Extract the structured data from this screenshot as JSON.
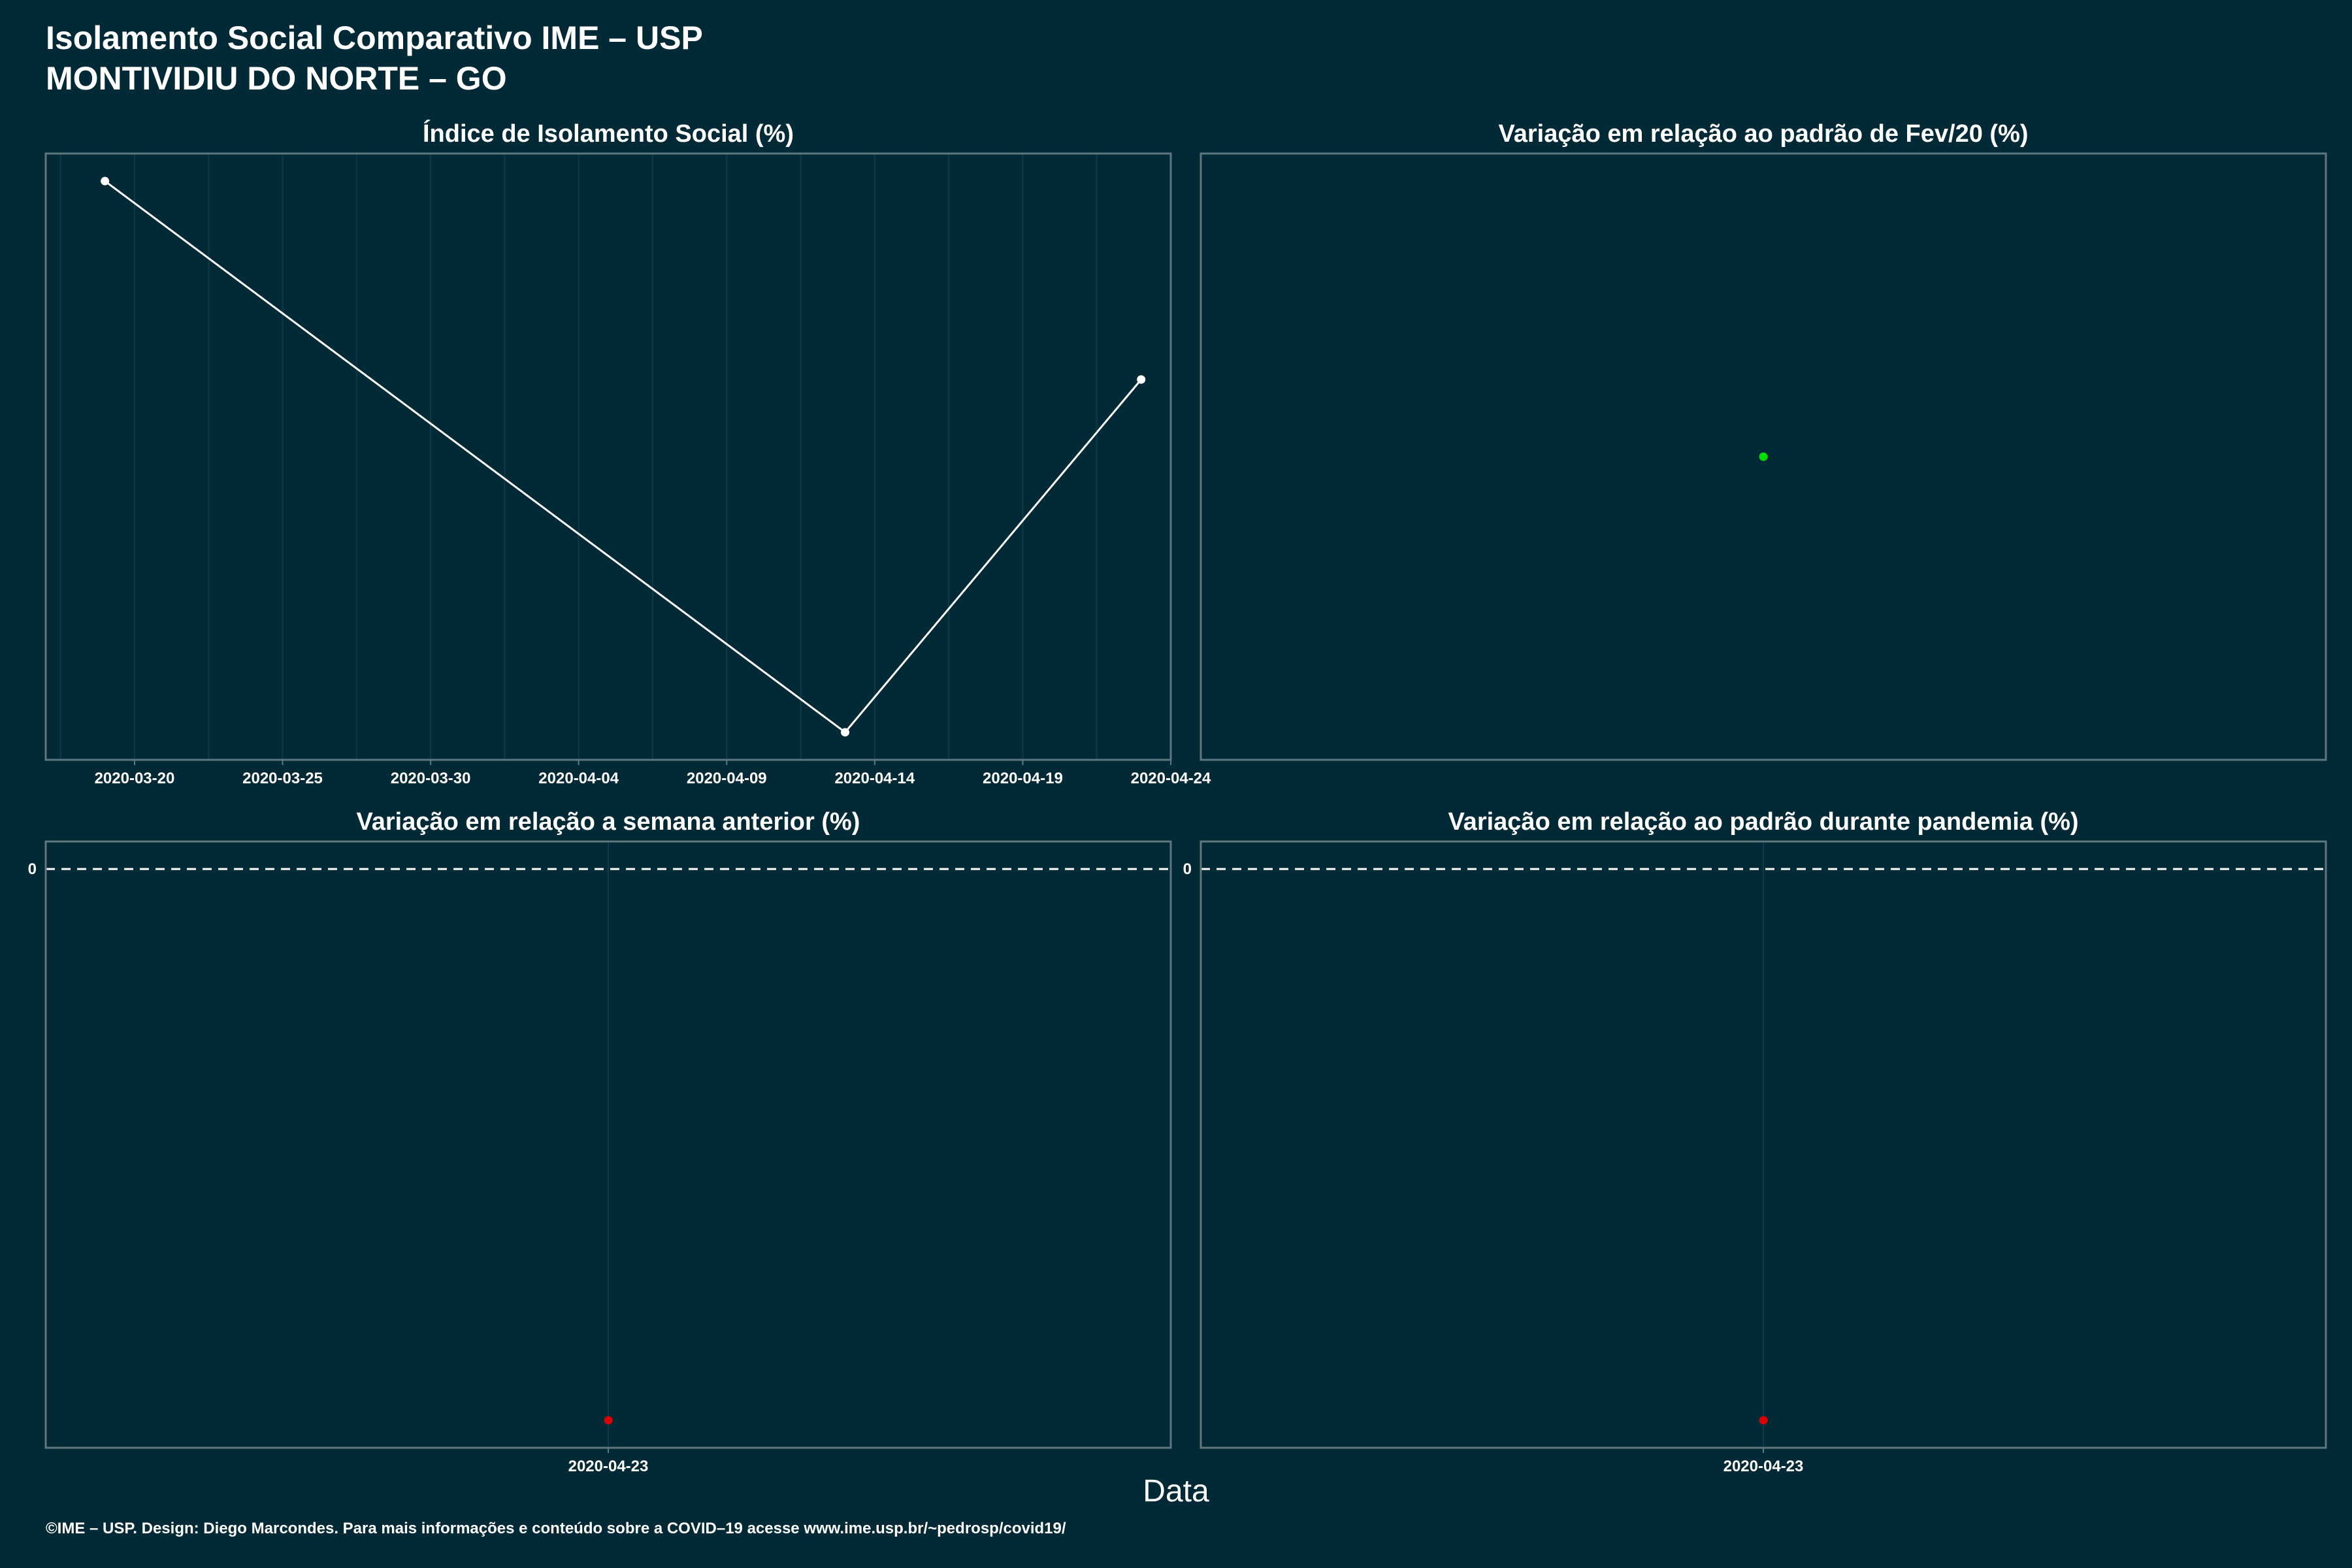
{
  "header": {
    "title": "Isolamento Social Comparativo IME – USP",
    "subtitle": "MONTIVIDIU DO NORTE – GO"
  },
  "footer": {
    "credit": "©IME – USP. Design: Diego Marcondes. Para mais informações e conteúdo sobre a COVID–19 acesse www.ime.usp.br/~pedrosp/covid19/"
  },
  "colors": {
    "background": "#012a36",
    "panel_border": "#5f7880",
    "grid": "#0d3a47",
    "line": "#ffffff",
    "point_green": "#00dd00",
    "point_red": "#dd0000"
  },
  "chart_data": [
    {
      "type": "line",
      "title": "Índice de Isolamento Social (%)",
      "x": [
        "2020-03-19",
        "2020-04-13",
        "2020-04-23"
      ],
      "y": [
        0.46,
        0.36,
        0.424
      ],
      "xlim": [
        "2020-03-17",
        "2020-04-24"
      ],
      "ylim": [
        0.355,
        0.465
      ],
      "xticks": [
        "2020-03-20",
        "2020-03-25",
        "2020-03-30",
        "2020-04-04",
        "2020-04-09",
        "2020-04-14",
        "2020-04-19",
        "2020-04-24"
      ],
      "point_color": "#ffffff",
      "grid": true
    },
    {
      "type": "scatter",
      "title": "Variação em relação ao padrão de Fev/20 (%)",
      "x": [
        "2020-04-23"
      ],
      "y": [
        0
      ],
      "ylim": [
        -1,
        1
      ],
      "point_color": "#00dd00",
      "grid": false
    },
    {
      "type": "scatter",
      "title": "Variação em relação a semana anterior (%)",
      "x": [
        "2020-04-23"
      ],
      "y": [
        -1
      ],
      "ylim": [
        -1.05,
        0.05
      ],
      "yticks": [
        0
      ],
      "xticks": [
        "2020-04-23"
      ],
      "reference_line": 0,
      "point_color": "#dd0000",
      "grid": true
    },
    {
      "type": "scatter",
      "title": "Variação em relação ao padrão durante pandemia (%)",
      "x": [
        "2020-04-23"
      ],
      "y": [
        -1
      ],
      "ylim": [
        -1.05,
        0.05
      ],
      "yticks": [
        0
      ],
      "xticks": [
        "2020-04-23"
      ],
      "reference_line": 0,
      "point_color": "#dd0000",
      "grid": true
    }
  ],
  "shared_xlabel": "Data"
}
